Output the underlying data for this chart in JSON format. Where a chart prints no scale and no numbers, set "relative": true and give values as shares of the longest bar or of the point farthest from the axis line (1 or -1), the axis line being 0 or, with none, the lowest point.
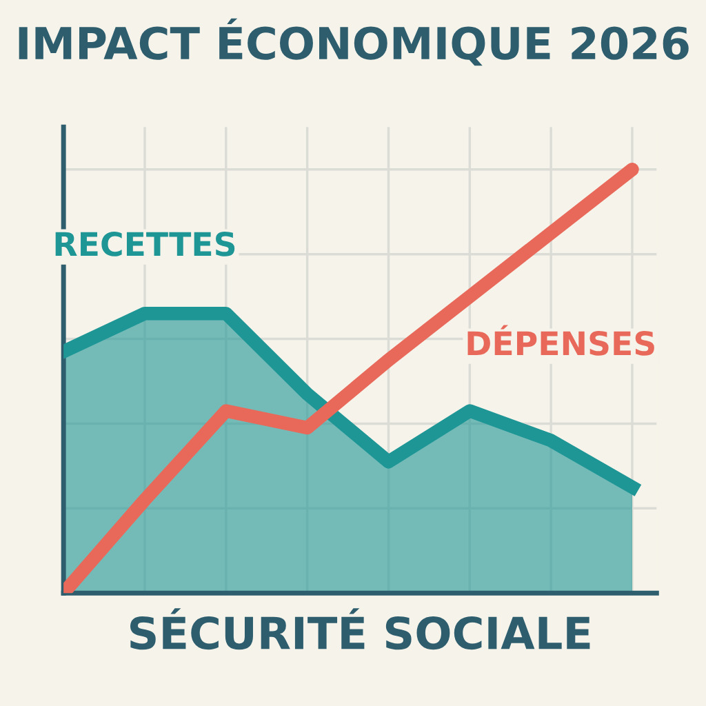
{
  "chart_data": {
    "type": "line",
    "title": "IMPACT ÉCONOMIQUE 2026",
    "xlabel": "SÉCURITÉ SOCIALE",
    "relative": true,
    "categories": [
      null,
      null,
      null,
      null,
      null,
      null,
      null,
      null
    ],
    "series": [
      {
        "name": "RECETTES",
        "type": "area",
        "color": "#1e9696",
        "values": [
          0.57,
          0.66,
          0.66,
          0.47,
          0.31,
          0.43,
          0.36,
          0.25
        ]
      },
      {
        "name": "DÉPENSES",
        "color": "#e8695a",
        "values": [
          0.0,
          0.22,
          0.43,
          0.39,
          0.55,
          0.7,
          0.85,
          1.0
        ]
      }
    ],
    "grid": true,
    "legend": false
  }
}
